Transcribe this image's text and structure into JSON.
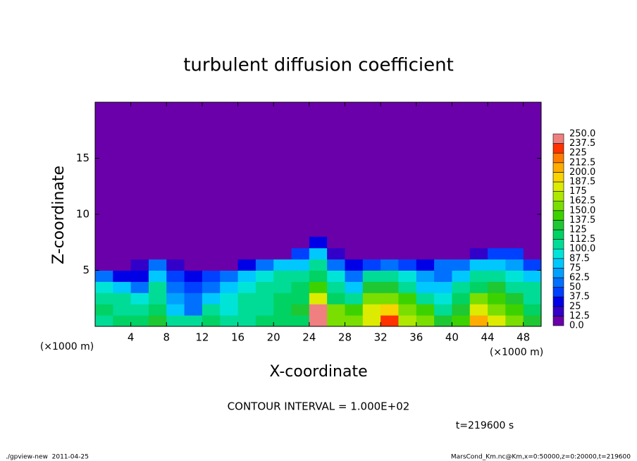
{
  "chart_data": {
    "type": "contour",
    "title": "turbulent diffusion coefficient",
    "xlabel": "X-coordinate",
    "ylabel": "Z-coordinate",
    "x_unit_label": "(×1000 m)",
    "xlim": [
      0,
      50
    ],
    "ylim": [
      0,
      20
    ],
    "xticks": [
      4,
      8,
      12,
      16,
      20,
      24,
      28,
      32,
      36,
      40,
      44,
      48
    ],
    "yticks": [
      5,
      10,
      15
    ],
    "x_edges": [
      0,
      2,
      4,
      6,
      8,
      10,
      12,
      14,
      16,
      18,
      20,
      22,
      24,
      26,
      28,
      30,
      32,
      34,
      36,
      38,
      40,
      42,
      44,
      46,
      48,
      50
    ],
    "z_edges": [
      0,
      1,
      2,
      3,
      4,
      5,
      6,
      7,
      8
    ],
    "values": [
      [
        110,
        115,
        120,
        125,
        110,
        100,
        120,
        110,
        100,
        115,
        120,
        120,
        250,
        160,
        150,
        180,
        225,
        170,
        150,
        125,
        140,
        200,
        175,
        150,
        130
      ],
      [
        115,
        110,
        100,
        115,
        80,
        60,
        100,
        90,
        100,
        110,
        115,
        125,
        240,
        150,
        140,
        175,
        190,
        160,
        140,
        110,
        130,
        175,
        160,
        140,
        120
      ],
      [
        100,
        100,
        90,
        110,
        70,
        50,
        75,
        90,
        100,
        105,
        115,
        120,
        180,
        120,
        100,
        160,
        150,
        140,
        100,
        90,
        120,
        150,
        140,
        125,
        110
      ],
      [
        90,
        75,
        50,
        100,
        60,
        40,
        60,
        75,
        90,
        100,
        110,
        115,
        140,
        100,
        80,
        130,
        125,
        110,
        80,
        75,
        100,
        120,
        125,
        110,
        100
      ],
      [
        60,
        25,
        30,
        80,
        40,
        30,
        40,
        50,
        75,
        90,
        100,
        100,
        120,
        90,
        60,
        100,
        100,
        90,
        70,
        60,
        80,
        100,
        100,
        90,
        75
      ],
      [
        0,
        0,
        20,
        50,
        20,
        0,
        0,
        10,
        30,
        50,
        75,
        80,
        100,
        60,
        30,
        40,
        50,
        40,
        30,
        60,
        60,
        75,
        75,
        70,
        40
      ],
      [
        0,
        0,
        0,
        0,
        0,
        0,
        0,
        0,
        0,
        0,
        0,
        40,
        75,
        20,
        0,
        0,
        0,
        0,
        0,
        0,
        0,
        20,
        40,
        40,
        0
      ],
      [
        0,
        0,
        0,
        0,
        0,
        0,
        0,
        0,
        0,
        0,
        0,
        0,
        30,
        0,
        0,
        0,
        0,
        0,
        0,
        0,
        0,
        0,
        0,
        0,
        0
      ]
    ],
    "levels": [
      {
        "value": 0,
        "label": "0.0"
      },
      12.5,
      25,
      37.5,
      50,
      62.5,
      75,
      87.5,
      {
        "value": 100,
        "label": "100.0"
      },
      112.5,
      125,
      137.5,
      {
        "value": 150,
        "label": "150.0"
      },
      162.5,
      175,
      187.5,
      {
        "value": 200,
        "label": "200.0"
      },
      212.5,
      225,
      237.5,
      {
        "value": 250,
        "label": "250.0"
      }
    ],
    "colors": [
      "#6a00aa",
      "#3200c8",
      "#0000e6",
      "#0040ff",
      "#0070ff",
      "#00a0ff",
      "#00c8ff",
      "#00e4d8",
      "#00dc96",
      "#00d264",
      "#1ec832",
      "#3cd200",
      "#7ade00",
      "#aee800",
      "#dceb00",
      "#f8d400",
      "#ffac00",
      "#ff7c00",
      "#ff3200",
      "#f08080"
    ],
    "annotations": [
      "CONTOUR INTERVAL = 1.000E+02",
      "t=219600 s"
    ],
    "footer_left": "./gpview-new  2011-04-25",
    "footer_right": "MarsCond_Km.nc@Km,x=0:50000,z=0:20000,t=219600"
  }
}
